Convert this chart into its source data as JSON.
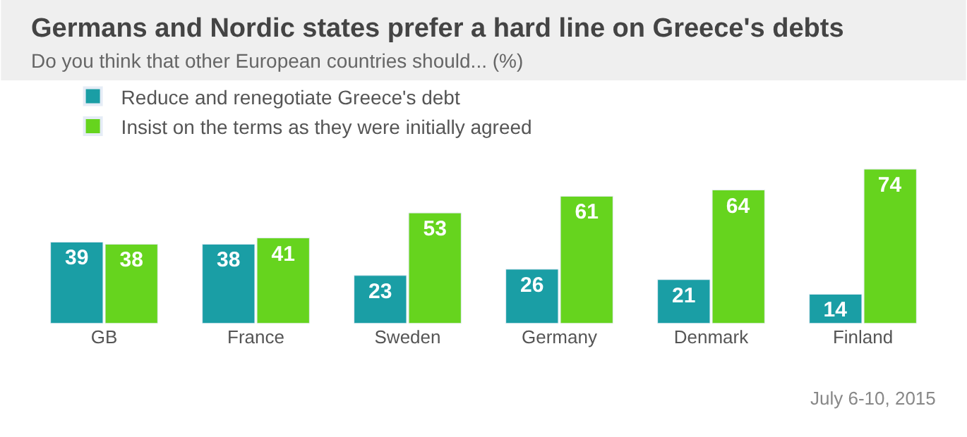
{
  "chart_data": {
    "type": "bar",
    "title": "Germans and Nordic states prefer a hard line on Greece's debts",
    "subtitle": "Do you think that other European countries should... (%)",
    "categories": [
      "GB",
      "France",
      "Sweden",
      "Germany",
      "Denmark",
      "Finland"
    ],
    "series": [
      {
        "name": "Reduce and renegotiate Greece's debt",
        "color": "#1a9ea5",
        "values": [
          39,
          38,
          23,
          26,
          21,
          14
        ]
      },
      {
        "name": "Insist on the terms as they were initially agreed",
        "color": "#66d41e",
        "values": [
          38,
          41,
          53,
          61,
          64,
          74
        ]
      }
    ],
    "data_labels": true,
    "legend": "top left",
    "annotations": [
      "July 6-10, 2015"
    ]
  }
}
